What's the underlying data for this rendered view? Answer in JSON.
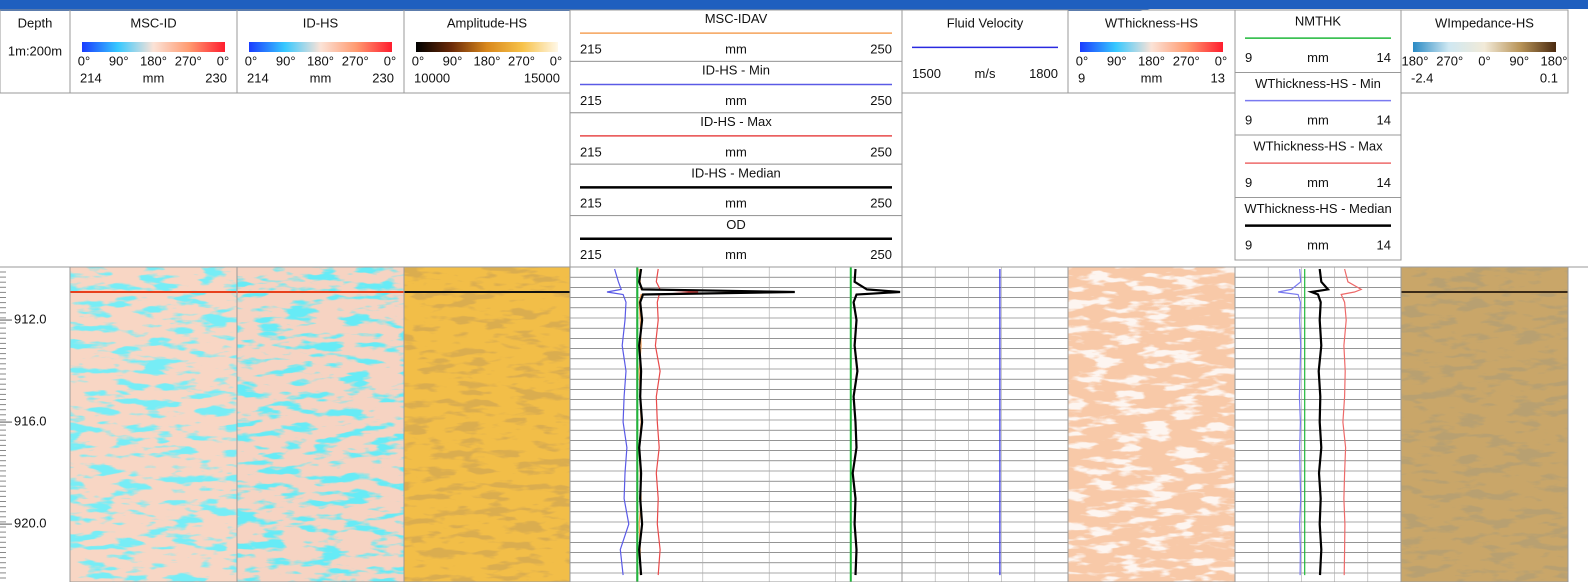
{
  "depth_track": {
    "title": "Depth",
    "scale": "1m:200m",
    "range": [
      909.92,
      922.27
    ],
    "ticks": [
      {
        "value": 912,
        "label": "912.0"
      },
      {
        "value": 916,
        "label": "916.0"
      },
      {
        "value": 920,
        "label": "920.0"
      }
    ]
  },
  "depths": [
    910.0,
    910.5,
    910.8,
    910.9,
    911.0,
    911.3,
    912.0,
    913.0,
    914.0,
    915.0,
    916.0,
    917.0,
    918.0,
    919.0,
    920.0,
    921.0,
    922.0
  ],
  "tracks": [
    {
      "kind": "image",
      "title": "MSC-ID",
      "palette": [
        "#1a3cff",
        "#36c8ff",
        "#fbe3d7",
        "#ff9a70",
        "#ff1d2e"
      ],
      "angles": [
        "0°",
        "90°",
        "180°",
        "270°",
        "0°"
      ],
      "min": 214,
      "unit": "mm",
      "max": 230,
      "image": {
        "base": "#f8d6c4",
        "streak": "#2ed8ec"
      },
      "event_line": {
        "depth": 910.9,
        "color": "#e8401c"
      }
    },
    {
      "kind": "image",
      "title": "ID-HS",
      "palette": [
        "#1a3cff",
        "#36c8ff",
        "#fbe3d7",
        "#ff9a70",
        "#ff1d2e"
      ],
      "angles": [
        "0°",
        "90°",
        "180°",
        "270°",
        "0°"
      ],
      "min": 214,
      "unit": "mm",
      "max": 230,
      "image": {
        "base": "#f6d3c2",
        "streak": "#22d4ea"
      },
      "event_line": {
        "depth": 910.9,
        "color": "#e8401c"
      }
    },
    {
      "kind": "image",
      "title": "Amplitude-HS",
      "palette": [
        "#000000",
        "#6b2a08",
        "#d9881c",
        "#f7c24a",
        "#fff8e8"
      ],
      "angles": [
        "0°",
        "90°",
        "180°",
        "270°",
        "0°"
      ],
      "min": 10000,
      "max": 15000,
      "image": {
        "base": "#f2be48",
        "streak": "#b36a14"
      },
      "event_line": {
        "depth": 910.9,
        "color": "#111111"
      }
    },
    {
      "kind": "curves",
      "curves": [
        {
          "title": "MSC-IDAV",
          "color": "#f5a25a",
          "min": 215,
          "unit": "mm",
          "max": 250,
          "values": [
            222.3,
            222.4,
            222.5,
            236.5,
            222.5,
            222.3,
            222.4,
            222.5,
            222.3,
            222.4,
            222.5,
            222.3,
            222.4,
            222.5,
            222.3,
            222.4,
            222.4
          ]
        },
        {
          "title": "ID-HS - Min",
          "color": "#5a5ae6",
          "min": 215,
          "unit": "mm",
          "max": 250,
          "values": [
            219.7,
            220.1,
            220.4,
            218.9,
            220.6,
            220.9,
            220.8,
            220.5,
            220.9,
            220.7,
            220.6,
            221.0,
            220.8,
            220.7,
            221.2,
            220.3,
            220.6
          ]
        },
        {
          "title": "ID-HS - Max",
          "color": "#e84a4a",
          "min": 215,
          "unit": "mm",
          "max": 250,
          "values": [
            224.3,
            224.1,
            224.5,
            228.5,
            224.4,
            224.2,
            224.3,
            224.0,
            224.5,
            224.1,
            224.2,
            224.4,
            224.1,
            224.3,
            224.2,
            224.5,
            224.3
          ]
        },
        {
          "title": "ID-HS - Median",
          "color": "#000000",
          "min": 215,
          "unit": "mm",
          "max": 250,
          "values": [
            222.5,
            222.3,
            222.6,
            238.7,
            222.7,
            222.4,
            222.6,
            222.3,
            222.5,
            222.4,
            222.6,
            222.3,
            222.5,
            222.4,
            222.6,
            222.3,
            222.5
          ]
        },
        {
          "title": "OD",
          "color": "#000000",
          "min": 215,
          "unit": "mm",
          "max": 250,
          "values": [
            245.1,
            245.0,
            246.3,
            249.8,
            245.2,
            244.9,
            245.2,
            245.0,
            245.3,
            244.9,
            245.1,
            245.2,
            244.8,
            245.1,
            245.0,
            245.2,
            245.1
          ]
        }
      ],
      "markers": {
        "color": "#1fb83a",
        "values": [
          222.1,
          244.6
        ]
      }
    },
    {
      "kind": "curves",
      "curves": [
        {
          "title": "Fluid Velocity",
          "color": "#2a2ae0",
          "min": 1500,
          "unit": "m/s",
          "max": 1800,
          "values": [
            1677,
            1677,
            1677,
            1677,
            1677,
            1677,
            1677,
            1677,
            1677,
            1677,
            1677,
            1677,
            1677,
            1677,
            1677,
            1677,
            1677
          ]
        }
      ]
    },
    {
      "kind": "image",
      "title": "WThickness-HS",
      "palette": [
        "#1a3cff",
        "#36c8ff",
        "#fbe3d7",
        "#ff9a70",
        "#ff1d2e"
      ],
      "angles": [
        "0°",
        "90°",
        "180°",
        "270°",
        "0°"
      ],
      "min": 9,
      "unit": "mm",
      "max": 13,
      "image": {
        "base": "#f8c9a8",
        "streak": "#fbe9df"
      }
    },
    {
      "kind": "curves",
      "curves": [
        {
          "title": "NMTHK",
          "color": "#1fb83a",
          "min": 9,
          "unit": "mm",
          "max": 14,
          "values": [
            11.1,
            11.1,
            11.1,
            11.1,
            11.1,
            11.1,
            11.1,
            11.1,
            11.1,
            11.1,
            11.1,
            11.1,
            11.1,
            11.1,
            11.1,
            11.1,
            11.1
          ]
        },
        {
          "title": "WThickness-HS - Min",
          "color": "#7a7af0",
          "min": 9,
          "unit": "mm",
          "max": 14,
          "values": [
            10.95,
            10.98,
            10.7,
            10.3,
            10.9,
            10.97,
            10.95,
            10.98,
            10.96,
            10.94,
            10.97,
            10.95,
            10.96,
            10.98,
            10.95,
            10.97,
            10.96
          ]
        },
        {
          "title": "WThickness-HS - Max",
          "color": "#ee6a6a",
          "min": 9,
          "unit": "mm",
          "max": 14,
          "values": [
            12.3,
            12.4,
            12.8,
            12.6,
            12.2,
            12.3,
            12.35,
            12.28,
            12.32,
            12.3,
            12.25,
            12.33,
            12.3,
            12.28,
            12.31,
            12.3,
            12.29
          ]
        },
        {
          "title": "WThickness-HS - Median",
          "color": "#000000",
          "min": 9,
          "unit": "mm",
          "max": 14,
          "values": [
            11.55,
            11.6,
            11.8,
            11.3,
            11.5,
            11.58,
            11.55,
            11.6,
            11.52,
            11.57,
            11.55,
            11.6,
            11.53,
            11.58,
            11.55,
            11.6,
            11.56
          ]
        }
      ]
    },
    {
      "kind": "image",
      "title": "WImpedance-HS",
      "palette": [
        "#2a8ac4",
        "#cfe8f2",
        "#f2ead8",
        "#b89458",
        "#4a2a10"
      ],
      "angles": [
        "180°",
        "270°",
        "0°",
        "90°",
        "180°"
      ],
      "min": -2.4,
      "max": 0.1,
      "image": {
        "base": "#c9a669",
        "streak": "#7a5a2a"
      },
      "event_line": {
        "depth": 910.9,
        "color": "#3a2a18"
      }
    }
  ]
}
